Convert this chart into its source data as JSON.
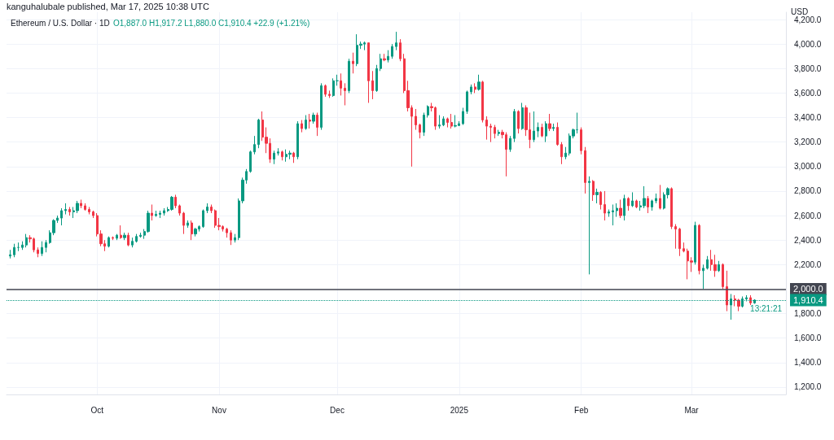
{
  "chart_data": {
    "type": "candlestick",
    "title": "Ethereum / U.S. Dollar · 1D",
    "subtitle": "O1,887.0 H1,917.2 L1,880.0 C1,910.4 +22.9 (+1.21%)",
    "ylabel": "USD",
    "annotations": [
      "kanguhalubale published, Mar 17, 2025 10:38 UTC",
      "13:21:21"
    ],
    "colors": [
      "#089981",
      "#089981",
      "#089981",
      "#089981",
      "#089981",
      "#f23645",
      "#f23645",
      "#f23645",
      "#089981",
      "#089981",
      "#089981",
      "#089981",
      "#089981",
      "#089981",
      "#089981",
      "#f23645",
      "#089981",
      "#089981",
      "#f23645",
      "#f23645",
      "#f23645",
      "#f23645",
      "#f23645",
      "#f23645",
      "#f23645",
      "#089981",
      "#f23645",
      "#089981",
      "#f23645",
      "#089981",
      "#f23645",
      "#089981",
      "#089981",
      "#089981",
      "#089981",
      "#089981",
      "#f23645",
      "#089981",
      "#089981",
      "#089981",
      "#089981",
      "#089981",
      "#f23645",
      "#f23645",
      "#f23645",
      "#089981",
      "#f23645",
      "#089981",
      "#089981",
      "#089981",
      "#089981",
      "#f23645",
      "#f23645",
      "#f23645",
      "#f23645",
      "#f23645",
      "#f23645",
      "#089981",
      "#089981",
      "#089981",
      "#089981",
      "#089981",
      "#089981",
      "#089981",
      "#f23645",
      "#f23645",
      "#f23645",
      "#089981",
      "#089981",
      "#f23645",
      "#089981",
      "#089981",
      "#f23645",
      "#089981",
      "#f23645",
      "#089981",
      "#f23645",
      "#089981",
      "#f23645",
      "#089981",
      "#f23645",
      "#f23645",
      "#089981",
      "#089981",
      "#f23645",
      "#f23645",
      "#089981",
      "#f23645",
      "#089981",
      "#089981",
      "#089981",
      "#f23645",
      "#f23645",
      "#089981",
      "#089981",
      "#f23645",
      "#089981",
      "#089981",
      "#089981",
      "#f23645",
      "#f23645",
      "#f23645",
      "#f23645",
      "#f23645",
      "#f23645",
      "#089981",
      "#089981",
      "#f23645",
      "#f23645",
      "#089981",
      "#089981",
      "#f23645",
      "#f23645",
      "#089981",
      "#089981",
      "#089981",
      "#089981",
      "#089981",
      "#f23645",
      "#089981",
      "#f23645",
      "#f23645",
      "#f23645",
      "#f23645",
      "#089981",
      "#f23645",
      "#f23645",
      "#089981",
      "#089981",
      "#f23645",
      "#089981",
      "#f23645",
      "#f23645",
      "#089981",
      "#089981",
      "#f23645",
      "#089981",
      "#f23645",
      "#089981",
      "#f23645",
      "#f23645",
      "#089981",
      "#089981",
      "#089981",
      "#089981",
      "#f23645",
      "#f23645",
      "#089981",
      "#f23645",
      "#089981",
      "#f23645",
      "#f23645",
      "#089981",
      "#089981",
      "#089981",
      "#f23645",
      "#089981",
      "#f23645",
      "#089981",
      "#f23645",
      "#089981",
      "#089981",
      "#f23645",
      "#089981",
      "#089981",
      "#f23645",
      "#089981",
      "#089981",
      "#f23645",
      "#f23645",
      "#f23645",
      "#f23645",
      "#f23645",
      "#f23645",
      "#089981",
      "#f23645",
      "#089981",
      "#089981",
      "#f23645",
      "#f23645",
      "#089981",
      "#f23645",
      "#f23645",
      "#089981",
      "#f23645",
      "#f23645",
      "#089981",
      "#089981",
      "#f23645",
      "#089981"
    ],
    "x": [
      "2024-09-09",
      "2024-09-10",
      "2024-09-11",
      "2024-09-12",
      "2024-09-13",
      "2024-09-14",
      "2024-09-15",
      "2024-09-16",
      "2024-09-17",
      "2024-09-18",
      "2024-09-19",
      "2024-09-20",
      "2024-09-21",
      "2024-09-22",
      "2024-09-23",
      "2024-09-24",
      "2024-09-25",
      "2024-09-26",
      "2024-09-27",
      "2024-09-28",
      "2024-09-29",
      "2024-09-30",
      "2024-10-01",
      "2024-10-02",
      "2024-10-03",
      "2024-10-04",
      "2024-10-05",
      "2024-10-06",
      "2024-10-07",
      "2024-10-08",
      "2024-10-09",
      "2024-10-10",
      "2024-10-11",
      "2024-10-12",
      "2024-10-13",
      "2024-10-14",
      "2024-10-15",
      "2024-10-16",
      "2024-10-17",
      "2024-10-18",
      "2024-10-19",
      "2024-10-20",
      "2024-10-21",
      "2024-10-22",
      "2024-10-23",
      "2024-10-24",
      "2024-10-25",
      "2024-10-26",
      "2024-10-27",
      "2024-10-28",
      "2024-10-29",
      "2024-10-30",
      "2024-10-31",
      "2024-11-01",
      "2024-11-02",
      "2024-11-03",
      "2024-11-04",
      "2024-11-05",
      "2024-11-06",
      "2024-11-07",
      "2024-11-08",
      "2024-11-09",
      "2024-11-10",
      "2024-11-11",
      "2024-11-12",
      "2024-11-13",
      "2024-11-14",
      "2024-11-15",
      "2024-11-16",
      "2024-11-17",
      "2024-11-18",
      "2024-11-19",
      "2024-11-20",
      "2024-11-21",
      "2024-11-22",
      "2024-11-23",
      "2024-11-24",
      "2024-11-25",
      "2024-11-26",
      "2024-11-27",
      "2024-11-28",
      "2024-11-29",
      "2024-11-30",
      "2024-12-01",
      "2024-12-02",
      "2024-12-03",
      "2024-12-04",
      "2024-12-05",
      "2024-12-06",
      "2024-12-07",
      "2024-12-08",
      "2024-12-09",
      "2024-12-10",
      "2024-12-11",
      "2024-12-12",
      "2024-12-13",
      "2024-12-14",
      "2024-12-15",
      "2024-12-16",
      "2024-12-17",
      "2024-12-18",
      "2024-12-19",
      "2024-12-20",
      "2024-12-21",
      "2024-12-22",
      "2024-12-23",
      "2024-12-24",
      "2024-12-25",
      "2024-12-26",
      "2024-12-27",
      "2024-12-28",
      "2024-12-29",
      "2024-12-30",
      "2024-12-31",
      "2025-01-01",
      "2025-01-02",
      "2025-01-03",
      "2025-01-04",
      "2025-01-05",
      "2025-01-06",
      "2025-01-07",
      "2025-01-08",
      "2025-01-09",
      "2025-01-10",
      "2025-01-11",
      "2025-01-12",
      "2025-01-13",
      "2025-01-14",
      "2025-01-15",
      "2025-01-16",
      "2025-01-17",
      "2025-01-18",
      "2025-01-19",
      "2025-01-20",
      "2025-01-21",
      "2025-01-22",
      "2025-01-23",
      "2025-01-24",
      "2025-01-25",
      "2025-01-26",
      "2025-01-27",
      "2025-01-28",
      "2025-01-29",
      "2025-01-30",
      "2025-01-31",
      "2025-02-01",
      "2025-02-02",
      "2025-02-03",
      "2025-02-04",
      "2025-02-05",
      "2025-02-06",
      "2025-02-07",
      "2025-02-08",
      "2025-02-09",
      "2025-02-10",
      "2025-02-11",
      "2025-02-12",
      "2025-02-13",
      "2025-02-14",
      "2025-02-15",
      "2025-02-16",
      "2025-02-17",
      "2025-02-18",
      "2025-02-19",
      "2025-02-20",
      "2025-02-21",
      "2025-02-22",
      "2025-02-23",
      "2025-02-24",
      "2025-02-25",
      "2025-02-26",
      "2025-02-27",
      "2025-02-28",
      "2025-03-01",
      "2025-03-02",
      "2025-03-03",
      "2025-03-04",
      "2025-03-05",
      "2025-03-06",
      "2025-03-07",
      "2025-03-08",
      "2025-03-09",
      "2025-03-10",
      "2025-03-11",
      "2025-03-12",
      "2025-03-13",
      "2025-03-14",
      "2025-03-15",
      "2025-03-16",
      "2025-03-17"
    ],
    "ohlc": [
      [
        2270,
        2320,
        2250,
        2280
      ],
      [
        2280,
        2370,
        2260,
        2340
      ],
      [
        2340,
        2380,
        2310,
        2340
      ],
      [
        2340,
        2390,
        2320,
        2360
      ],
      [
        2360,
        2450,
        2340,
        2420
      ],
      [
        2420,
        2440,
        2380,
        2410
      ],
      [
        2410,
        2420,
        2300,
        2320
      ],
      [
        2320,
        2340,
        2260,
        2290
      ],
      [
        2290,
        2390,
        2270,
        2340
      ],
      [
        2340,
        2400,
        2300,
        2380
      ],
      [
        2380,
        2480,
        2370,
        2460
      ],
      [
        2460,
        2570,
        2440,
        2560
      ],
      [
        2560,
        2600,
        2540,
        2580
      ],
      [
        2580,
        2660,
        2520,
        2640
      ],
      [
        2640,
        2700,
        2610,
        2650
      ],
      [
        2650,
        2670,
        2600,
        2630
      ],
      [
        2630,
        2670,
        2580,
        2640
      ],
      [
        2640,
        2720,
        2620,
        2700
      ],
      [
        2700,
        2730,
        2660,
        2680
      ],
      [
        2680,
        2700,
        2640,
        2650
      ],
      [
        2650,
        2670,
        2610,
        2630
      ],
      [
        2630,
        2640,
        2580,
        2600
      ],
      [
        2600,
        2620,
        2430,
        2450
      ],
      [
        2450,
        2480,
        2350,
        2370
      ],
      [
        2370,
        2400,
        2310,
        2350
      ],
      [
        2350,
        2430,
        2340,
        2420
      ],
      [
        2420,
        2430,
        2400,
        2415
      ],
      [
        2415,
        2450,
        2400,
        2440
      ],
      [
        2440,
        2520,
        2410,
        2420
      ],
      [
        2420,
        2460,
        2400,
        2440
      ],
      [
        2440,
        2460,
        2350,
        2360
      ],
      [
        2360,
        2420,
        2340,
        2390
      ],
      [
        2390,
        2450,
        2380,
        2430
      ],
      [
        2430,
        2460,
        2420,
        2440
      ],
      [
        2440,
        2490,
        2410,
        2470
      ],
      [
        2470,
        2640,
        2460,
        2620
      ],
      [
        2620,
        2690,
        2560,
        2600
      ],
      [
        2600,
        2640,
        2590,
        2610
      ],
      [
        2610,
        2640,
        2580,
        2620
      ],
      [
        2620,
        2660,
        2600,
        2640
      ],
      [
        2640,
        2670,
        2630,
        2650
      ],
      [
        2650,
        2760,
        2640,
        2750
      ],
      [
        2750,
        2770,
        2660,
        2680
      ],
      [
        2680,
        2690,
        2600,
        2620
      ],
      [
        2620,
        2630,
        2450,
        2520
      ],
      [
        2520,
        2560,
        2500,
        2540
      ],
      [
        2540,
        2560,
        2400,
        2450
      ],
      [
        2450,
        2500,
        2430,
        2490
      ],
      [
        2490,
        2520,
        2470,
        2510
      ],
      [
        2510,
        2650,
        2500,
        2640
      ],
      [
        2640,
        2700,
        2620,
        2670
      ],
      [
        2670,
        2690,
        2620,
        2640
      ],
      [
        2640,
        2650,
        2500,
        2520
      ],
      [
        2520,
        2580,
        2480,
        2510
      ],
      [
        2510,
        2520,
        2470,
        2490
      ],
      [
        2490,
        2500,
        2420,
        2460
      ],
      [
        2460,
        2480,
        2360,
        2400
      ],
      [
        2400,
        2450,
        2380,
        2420
      ],
      [
        2420,
        2740,
        2400,
        2720
      ],
      [
        2720,
        2910,
        2700,
        2890
      ],
      [
        2890,
        2980,
        2860,
        2960
      ],
      [
        2960,
        3130,
        2950,
        3120
      ],
      [
        3120,
        3250,
        3100,
        3180
      ],
      [
        3180,
        3390,
        3150,
        3380
      ],
      [
        3380,
        3450,
        3210,
        3240
      ],
      [
        3240,
        3320,
        3110,
        3190
      ],
      [
        3190,
        3230,
        3030,
        3060
      ],
      [
        3060,
        3130,
        3020,
        3110
      ],
      [
        3110,
        3150,
        3090,
        3120
      ],
      [
        3120,
        3130,
        3050,
        3080
      ],
      [
        3080,
        3140,
        3040,
        3100
      ],
      [
        3100,
        3130,
        3060,
        3110
      ],
      [
        3110,
        3120,
        3030,
        3080
      ],
      [
        3080,
        3370,
        3060,
        3350
      ],
      [
        3350,
        3380,
        3280,
        3310
      ],
      [
        3310,
        3420,
        3300,
        3380
      ],
      [
        3380,
        3430,
        3310,
        3370
      ],
      [
        3370,
        3440,
        3350,
        3420
      ],
      [
        3420,
        3440,
        3250,
        3320
      ],
      [
        3320,
        3680,
        3300,
        3660
      ],
      [
        3660,
        3670,
        3570,
        3590
      ],
      [
        3590,
        3620,
        3560,
        3580
      ],
      [
        3580,
        3720,
        3570,
        3700
      ],
      [
        3700,
        3750,
        3660,
        3700
      ],
      [
        3700,
        3760,
        3580,
        3640
      ],
      [
        3640,
        3680,
        3500,
        3620
      ],
      [
        3620,
        3880,
        3600,
        3860
      ],
      [
        3860,
        3930,
        3760,
        3840
      ],
      [
        3840,
        4080,
        3820,
        3990
      ],
      [
        3990,
        4020,
        3960,
        4000
      ],
      [
        4000,
        4020,
        3950,
        4010
      ],
      [
        4010,
        4010,
        3520,
        3700
      ],
      [
        3700,
        3780,
        3550,
        3620
      ],
      [
        3620,
        3830,
        3610,
        3800
      ],
      [
        3800,
        3920,
        3780,
        3880
      ],
      [
        3880,
        3920,
        3860,
        3870
      ],
      [
        3870,
        3950,
        3850,
        3900
      ],
      [
        3900,
        4000,
        3880,
        3980
      ],
      [
        3980,
        4100,
        3950,
        4010
      ],
      [
        4010,
        4040,
        3860,
        3880
      ],
      [
        3880,
        3920,
        3600,
        3620
      ],
      [
        3620,
        3700,
        3450,
        3480
      ],
      [
        3480,
        3500,
        3000,
        3410
      ],
      [
        3410,
        3470,
        3300,
        3340
      ],
      [
        3340,
        3350,
        3230,
        3280
      ],
      [
        3280,
        3440,
        3250,
        3420
      ],
      [
        3420,
        3500,
        3400,
        3490
      ],
      [
        3490,
        3520,
        3450,
        3480
      ],
      [
        3480,
        3490,
        3300,
        3330
      ],
      [
        3330,
        3420,
        3310,
        3340
      ],
      [
        3340,
        3410,
        3330,
        3390
      ],
      [
        3390,
        3400,
        3320,
        3360
      ],
      [
        3360,
        3430,
        3310,
        3330
      ],
      [
        3330,
        3420,
        3320,
        3335
      ],
      [
        3335,
        3370,
        3330,
        3350
      ],
      [
        3350,
        3480,
        3340,
        3450
      ],
      [
        3450,
        3620,
        3430,
        3610
      ],
      [
        3610,
        3670,
        3590,
        3650
      ],
      [
        3650,
        3680,
        3600,
        3630
      ],
      [
        3630,
        3750,
        3620,
        3690
      ],
      [
        3690,
        3700,
        3360,
        3380
      ],
      [
        3380,
        3410,
        3220,
        3330
      ],
      [
        3330,
        3350,
        3200,
        3320
      ],
      [
        3320,
        3340,
        3230,
        3270
      ],
      [
        3270,
        3300,
        3250,
        3280
      ],
      [
        3280,
        3300,
        3230,
        3260
      ],
      [
        3260,
        3280,
        2920,
        3140
      ],
      [
        3140,
        3250,
        3120,
        3230
      ],
      [
        3230,
        3470,
        3200,
        3450
      ],
      [
        3450,
        3460,
        3270,
        3310
      ],
      [
        3310,
        3520,
        3300,
        3480
      ],
      [
        3480,
        3500,
        3250,
        3300
      ],
      [
        3300,
        3440,
        3150,
        3220
      ],
      [
        3220,
        3450,
        3200,
        3290
      ],
      [
        3290,
        3360,
        3240,
        3320
      ],
      [
        3320,
        3350,
        3240,
        3250
      ],
      [
        3250,
        3370,
        3200,
        3350
      ],
      [
        3350,
        3430,
        3290,
        3310
      ],
      [
        3310,
        3350,
        3290,
        3320
      ],
      [
        3320,
        3360,
        3170,
        3180
      ],
      [
        3180,
        3200,
        3020,
        3080
      ],
      [
        3080,
        3160,
        3060,
        3110
      ],
      [
        3110,
        3270,
        3090,
        3250
      ],
      [
        3250,
        3310,
        3230,
        3300
      ],
      [
        3300,
        3440,
        3270,
        3300
      ],
      [
        3300,
        3320,
        3100,
        3130
      ],
      [
        3130,
        3160,
        2780,
        2870
      ],
      [
        2870,
        2920,
        2120,
        2880
      ],
      [
        2880,
        2890,
        2720,
        2770
      ],
      [
        2770,
        2820,
        2700,
        2790
      ],
      [
        2790,
        2800,
        2650,
        2690
      ],
      [
        2690,
        2800,
        2560,
        2620
      ],
      [
        2620,
        2650,
        2590,
        2630
      ],
      [
        2630,
        2690,
        2520,
        2640
      ],
      [
        2640,
        2700,
        2590,
        2660
      ],
      [
        2660,
        2730,
        2580,
        2600
      ],
      [
        2600,
        2770,
        2560,
        2740
      ],
      [
        2740,
        2750,
        2640,
        2680
      ],
      [
        2680,
        2790,
        2670,
        2720
      ],
      [
        2720,
        2730,
        2660,
        2670
      ],
      [
        2670,
        2720,
        2640,
        2680
      ],
      [
        2680,
        2840,
        2660,
        2740
      ],
      [
        2740,
        2760,
        2620,
        2670
      ],
      [
        2670,
        2730,
        2640,
        2720
      ],
      [
        2720,
        2780,
        2700,
        2740
      ],
      [
        2740,
        2850,
        2650,
        2660
      ],
      [
        2660,
        2790,
        2650,
        2770
      ],
      [
        2770,
        2830,
        2740,
        2820
      ],
      [
        2820,
        2830,
        2490,
        2510
      ],
      [
        2510,
        2530,
        2330,
        2490
      ],
      [
        2490,
        2500,
        2270,
        2330
      ],
      [
        2330,
        2380,
        2300,
        2310
      ],
      [
        2310,
        2330,
        2080,
        2230
      ],
      [
        2230,
        2260,
        2140,
        2220
      ],
      [
        2220,
        2550,
        2200,
        2520
      ],
      [
        2520,
        2530,
        2120,
        2150
      ],
      [
        2150,
        2200,
        2000,
        2170
      ],
      [
        2170,
        2270,
        2160,
        2240
      ],
      [
        2240,
        2320,
        2150,
        2200
      ],
      [
        2200,
        2280,
        2100,
        2150
      ],
      [
        2150,
        2230,
        2140,
        2200
      ],
      [
        2200,
        2210,
        2000,
        2020
      ],
      [
        2020,
        2150,
        1820,
        1870
      ],
      [
        1870,
        1960,
        1750,
        1920
      ],
      [
        1920,
        1950,
        1860,
        1910
      ],
      [
        1910,
        1920,
        1820,
        1860
      ],
      [
        1860,
        1940,
        1850,
        1920
      ],
      [
        1920,
        1950,
        1900,
        1930
      ],
      [
        1930,
        1950,
        1870,
        1887.5
      ],
      [
        1887.0,
        1917.2,
        1880.0,
        1910.4
      ]
    ],
    "xlim": [
      "2024-09-08",
      "2025-03-25"
    ],
    "xticks": [
      {
        "value": "2024-10-01",
        "label": "Oct"
      },
      {
        "value": "2024-11-01",
        "label": "Nov"
      },
      {
        "value": "2024-12-01",
        "label": "Dec"
      },
      {
        "value": "2025-01-01",
        "label": "2025"
      },
      {
        "value": "2025-02-01",
        "label": "Feb"
      },
      {
        "value": "2025-03-01",
        "label": "Mar"
      }
    ],
    "ylim": [
      1140,
      4260
    ],
    "yticks": [
      {
        "value": 1200,
        "label": "1,200.0"
      },
      {
        "value": 1400,
        "label": "1,400.0"
      },
      {
        "value": 1600,
        "label": "1,600.0"
      },
      {
        "value": 1800,
        "label": "1,800.0"
      },
      {
        "value": 2000,
        "label": null
      },
      {
        "value": 2200,
        "label": "2,200.0"
      },
      {
        "value": 2400,
        "label": "2,400.0"
      },
      {
        "value": 2600,
        "label": "2,600.0"
      },
      {
        "value": 2800,
        "label": "2,800.0"
      },
      {
        "value": 3000,
        "label": "3,000.0"
      },
      {
        "value": 3200,
        "label": "3,200.0"
      },
      {
        "value": 3400,
        "label": "3,400.0"
      },
      {
        "value": 3600,
        "label": "3,600.0"
      },
      {
        "value": 3800,
        "label": "3,800.0"
      },
      {
        "value": 4000,
        "label": "4,000.0"
      },
      {
        "value": 4200,
        "label": "4,200.0"
      }
    ],
    "ref_lines": [
      {
        "axis": "y",
        "value": 2000,
        "label": "2,000.0",
        "color": "#434651",
        "line_style": "solid"
      },
      {
        "axis": "y",
        "value": 1910.4,
        "label": "1,910.4",
        "color": "#089981",
        "line_style": "dotted"
      }
    ],
    "grid": true
  }
}
